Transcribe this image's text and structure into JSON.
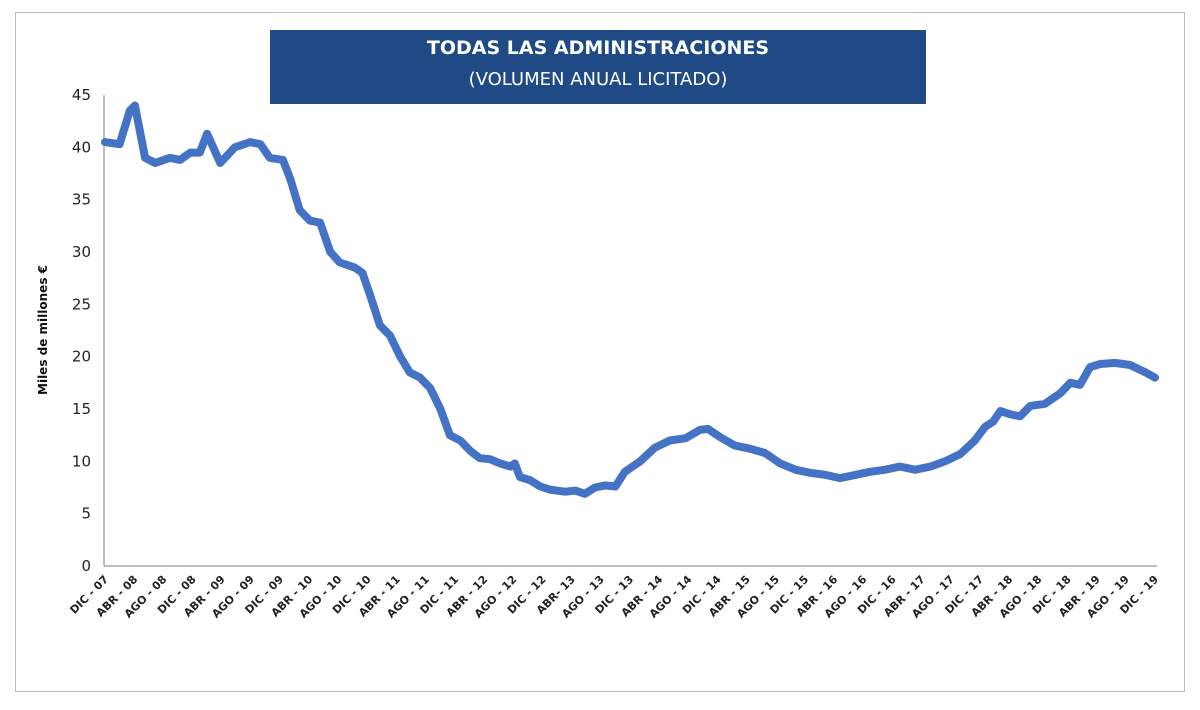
{
  "chart_data": {
    "type": "line",
    "title": "TODAS LAS ADMINISTRACIONES",
    "subtitle": "(VOLUMEN ANUAL LICITADO)",
    "xlabel": "",
    "ylabel": "Miles de millones €",
    "ylim": [
      0,
      45
    ],
    "yticks": [
      0,
      5,
      10,
      15,
      20,
      25,
      30,
      35,
      40,
      45
    ],
    "grid": false,
    "line_color": "#4472c4",
    "title_bg": "#1f4a85",
    "xtick_labels": [
      "DIC - 07",
      "ABR - 08",
      "AGO - 08",
      "DIC - 08",
      "ABR - 09",
      "AGO - 09",
      "DIC - 09",
      "ABR - 10",
      "AGO - 10",
      "DIC - 10",
      "ABR - 11",
      "AGO - 11",
      "DIC - 11",
      "ABR - 12",
      "AGO - 12",
      "DIC - 12",
      "ABR- 13",
      "AGO - 13",
      "DIC - 13",
      "ABR - 14",
      "AGO - 14",
      "DIC - 14",
      "ABR - 15",
      "AGO - 15",
      "DIC - 15",
      "ABR - 16",
      "AGO - 16",
      "DIC - 16",
      "ABR - 17",
      "AGO - 17",
      "DIC - 17",
      "ABR - 18",
      "AGO - 18",
      "DIC - 18",
      "ABR - 19",
      "AGO - 19",
      "DIC - 19"
    ],
    "x_unit": "months since DIC-07",
    "series": [
      {
        "name": "Volumen anual licitado",
        "points": [
          [
            0,
            40.5
          ],
          [
            2,
            40.3
          ],
          [
            3.4,
            43.5
          ],
          [
            4.1,
            44
          ],
          [
            5.5,
            39
          ],
          [
            6.9,
            38.5
          ],
          [
            8.9,
            39
          ],
          [
            10.3,
            38.8
          ],
          [
            11.7,
            39.5
          ],
          [
            13,
            39.5
          ],
          [
            14,
            41.3
          ],
          [
            15.8,
            38.5
          ],
          [
            17.8,
            40
          ],
          [
            19.9,
            40.5
          ],
          [
            21.3,
            40.3
          ],
          [
            22.6,
            39
          ],
          [
            24.4,
            38.8
          ],
          [
            25.4,
            37
          ],
          [
            26.7,
            34
          ],
          [
            28.1,
            33
          ],
          [
            29.5,
            32.8
          ],
          [
            30.9,
            30
          ],
          [
            32.2,
            29
          ],
          [
            34.3,
            28.5
          ],
          [
            35.3,
            28
          ],
          [
            36.3,
            26
          ],
          [
            37.7,
            23
          ],
          [
            39.1,
            22
          ],
          [
            40.5,
            20
          ],
          [
            41.8,
            18.5
          ],
          [
            43.2,
            18
          ],
          [
            44.6,
            17
          ],
          [
            46,
            15
          ],
          [
            47.3,
            12.5
          ],
          [
            48.7,
            12
          ],
          [
            50.1,
            11
          ],
          [
            51.4,
            10.3
          ],
          [
            52.8,
            10.2
          ],
          [
            54.2,
            9.8
          ],
          [
            55.6,
            9.5
          ],
          [
            56.2,
            9.8
          ],
          [
            56.9,
            8.5
          ],
          [
            58.3,
            8.2
          ],
          [
            59.7,
            7.6
          ],
          [
            61,
            7.3
          ],
          [
            63.1,
            7.1
          ],
          [
            64.5,
            7.2
          ],
          [
            65.8,
            6.9
          ],
          [
            67.2,
            7.5
          ],
          [
            68.6,
            7.7
          ],
          [
            70,
            7.6
          ],
          [
            71.3,
            9
          ],
          [
            73.4,
            10
          ],
          [
            75.4,
            11.3
          ],
          [
            77.5,
            12
          ],
          [
            79.6,
            12.2
          ],
          [
            81.6,
            13
          ],
          [
            82.7,
            13.1
          ],
          [
            84.4,
            12.3
          ],
          [
            86.4,
            11.5
          ],
          [
            88.5,
            11.2
          ],
          [
            90.5,
            10.8
          ],
          [
            92.6,
            9.8
          ],
          [
            94.7,
            9.2
          ],
          [
            96.7,
            8.9
          ],
          [
            98.8,
            8.7
          ],
          [
            100.8,
            8.4
          ],
          [
            102.9,
            8.7
          ],
          [
            104.9,
            9
          ],
          [
            107,
            9.2
          ],
          [
            109,
            9.5
          ],
          [
            111.1,
            9.2
          ],
          [
            113.2,
            9.5
          ],
          [
            115.2,
            10
          ],
          [
            117.3,
            10.7
          ],
          [
            119.3,
            12
          ],
          [
            120.7,
            13.3
          ],
          [
            121.8,
            13.8
          ],
          [
            122.8,
            14.8
          ],
          [
            124.1,
            14.5
          ],
          [
            125.5,
            14.3
          ],
          [
            126.9,
            15.3
          ],
          [
            128.9,
            15.5
          ],
          [
            131,
            16.5
          ],
          [
            132.4,
            17.5
          ],
          [
            133.7,
            17.3
          ],
          [
            135.1,
            19
          ],
          [
            136.5,
            19.3
          ],
          [
            138.5,
            19.4
          ],
          [
            140.6,
            19.2
          ],
          [
            142.7,
            18.5
          ],
          [
            144,
            18
          ]
        ]
      }
    ]
  }
}
